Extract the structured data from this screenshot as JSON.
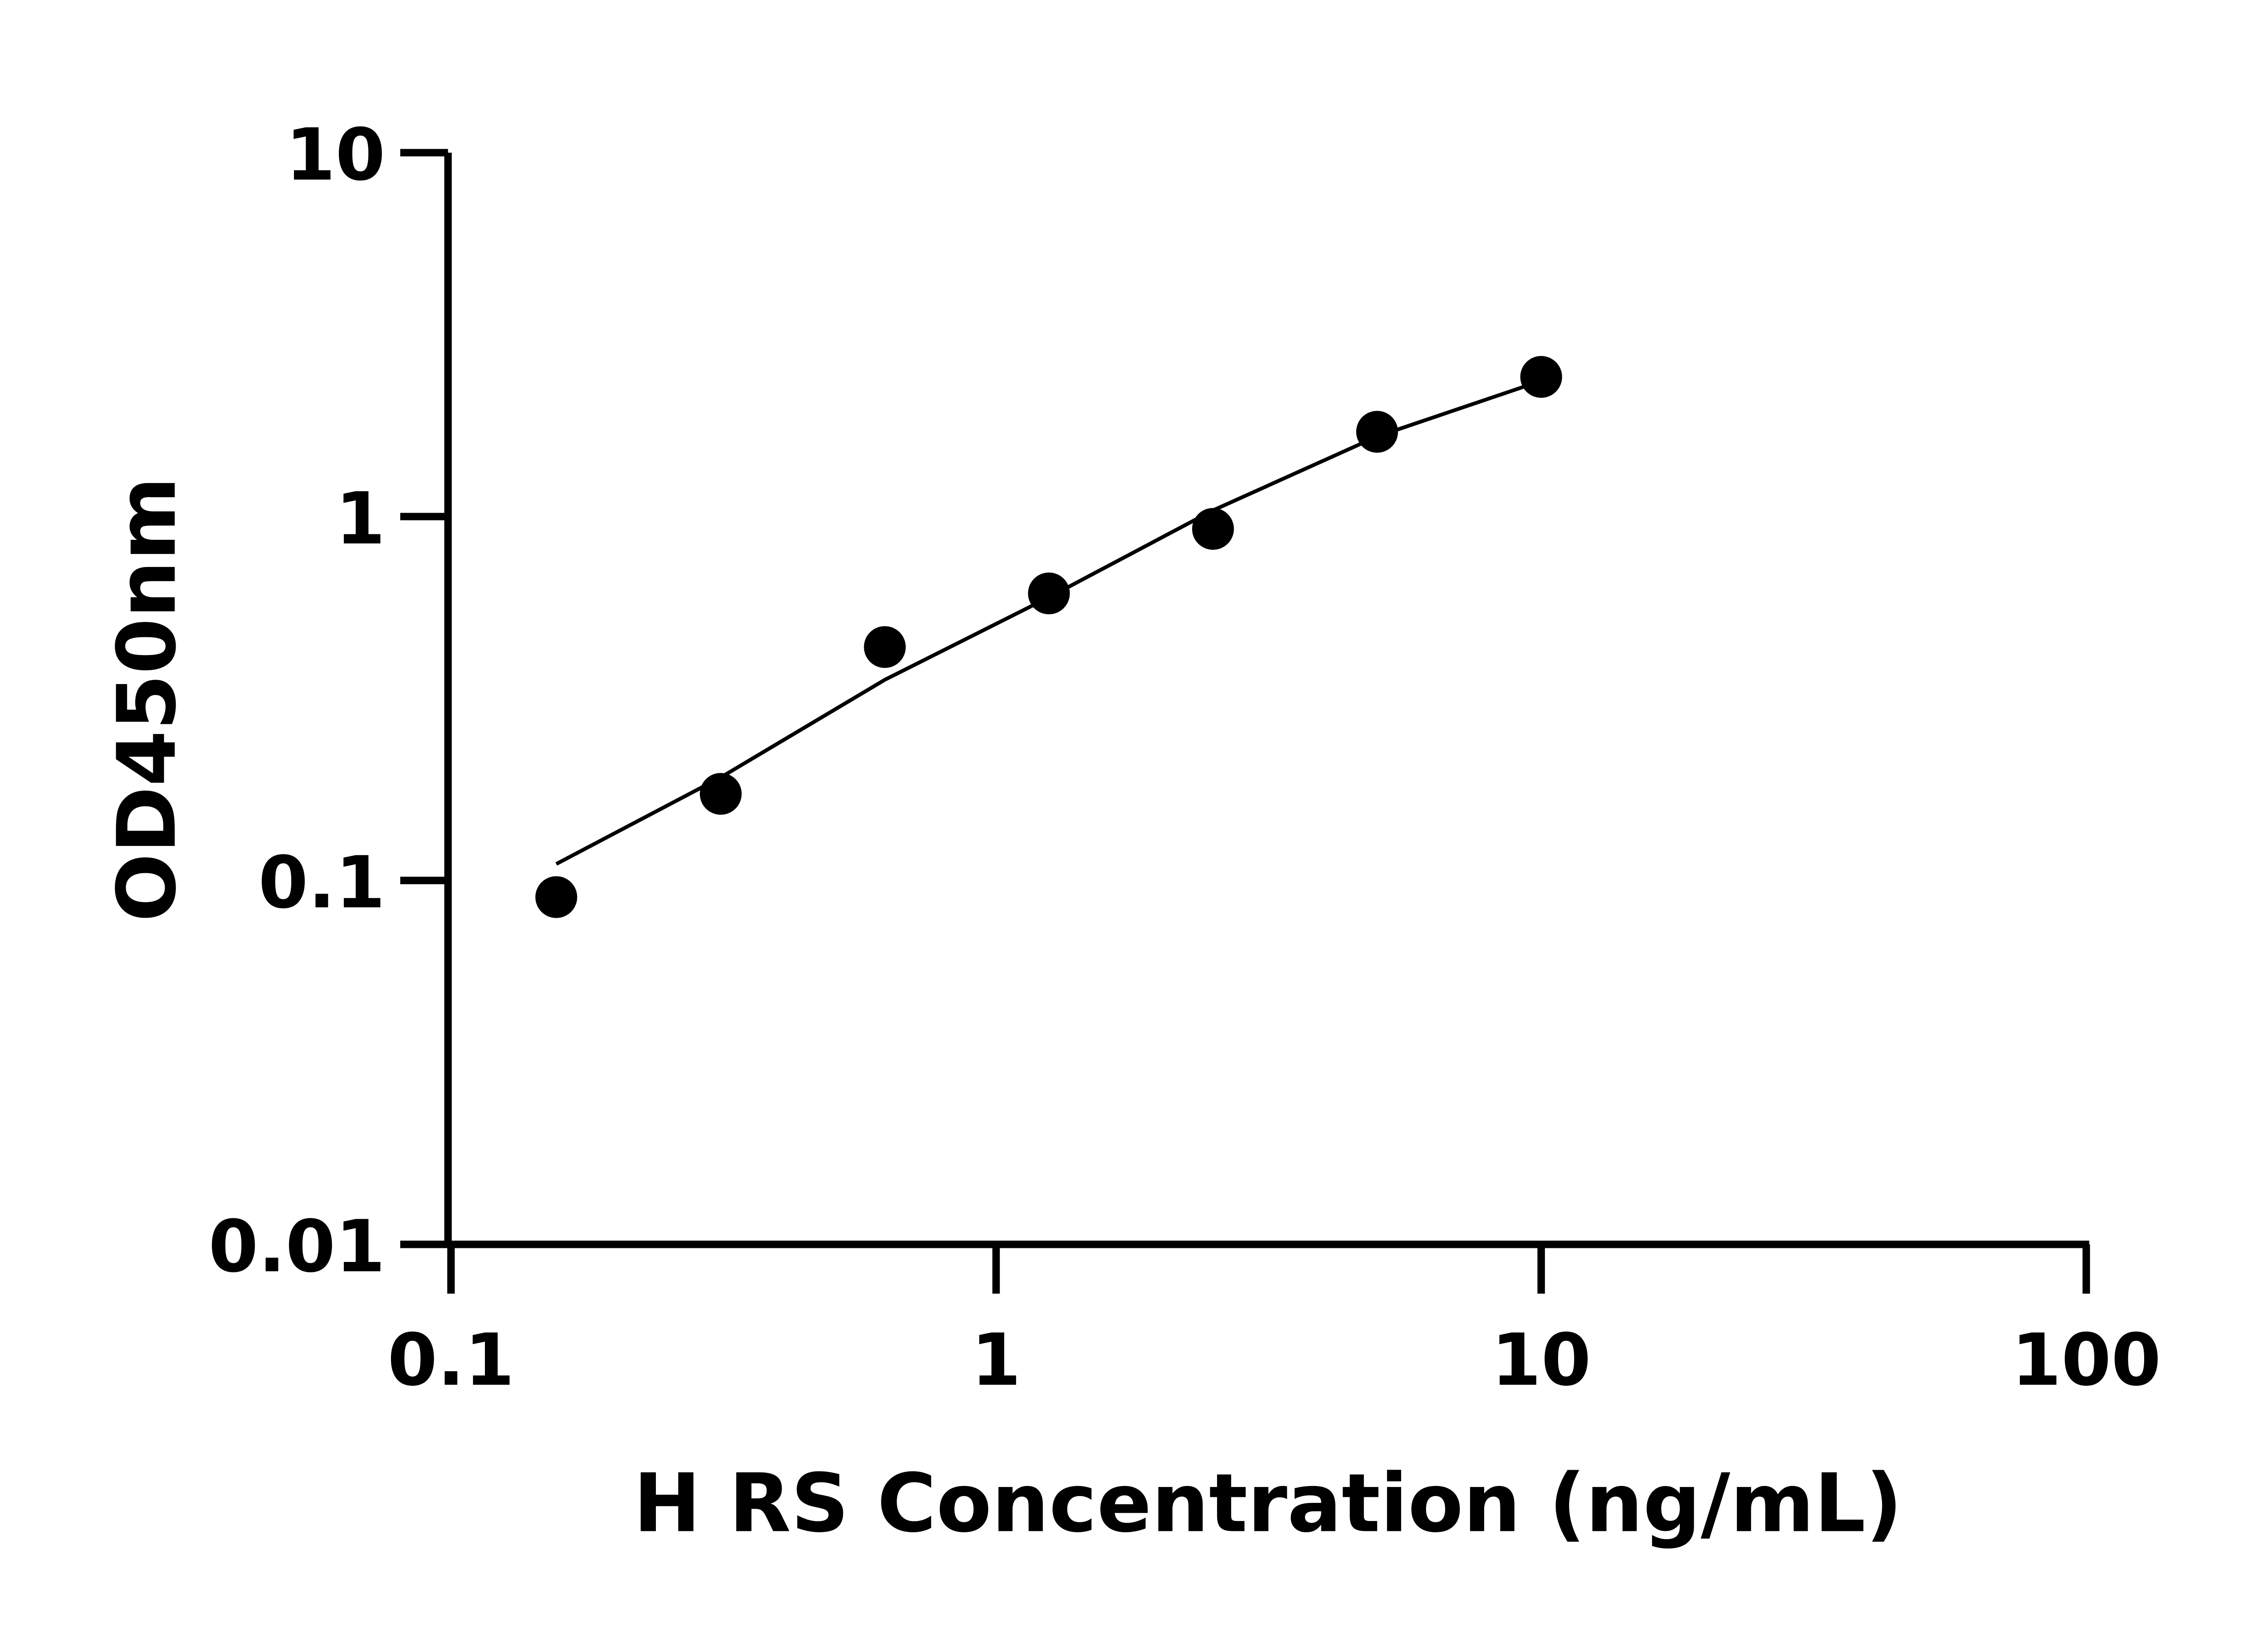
{
  "chart_data": {
    "type": "scatter",
    "title": "",
    "xlabel": "H RS Concentration (ng/mL)",
    "ylabel": "OD450nm",
    "xscale": "log",
    "yscale": "log",
    "xlim": [
      0.1,
      100
    ],
    "ylim": [
      0.01,
      10
    ],
    "xticks": [
      "0.1",
      "1",
      "10",
      "100"
    ],
    "yticks": [
      "0.01",
      "0.1",
      "1",
      "10"
    ],
    "grid": false,
    "legend": "none",
    "series": [
      {
        "type": "scatter",
        "x": [
          0.156,
          0.3125,
          0.625,
          1.25,
          2.5,
          5,
          10
        ],
        "y": [
          0.09,
          0.173,
          0.438,
          0.615,
          0.925,
          1.71,
          2.42
        ]
      },
      {
        "type": "line",
        "x": [
          0.156,
          0.3125,
          0.625,
          1.25,
          2.5,
          5,
          10
        ],
        "y": [
          0.111,
          0.192,
          0.356,
          0.6,
          1.04,
          1.66,
          2.36
        ]
      }
    ],
    "colors": {
      "marker": "#000000",
      "line": "#000000",
      "axis": "#000000"
    }
  }
}
